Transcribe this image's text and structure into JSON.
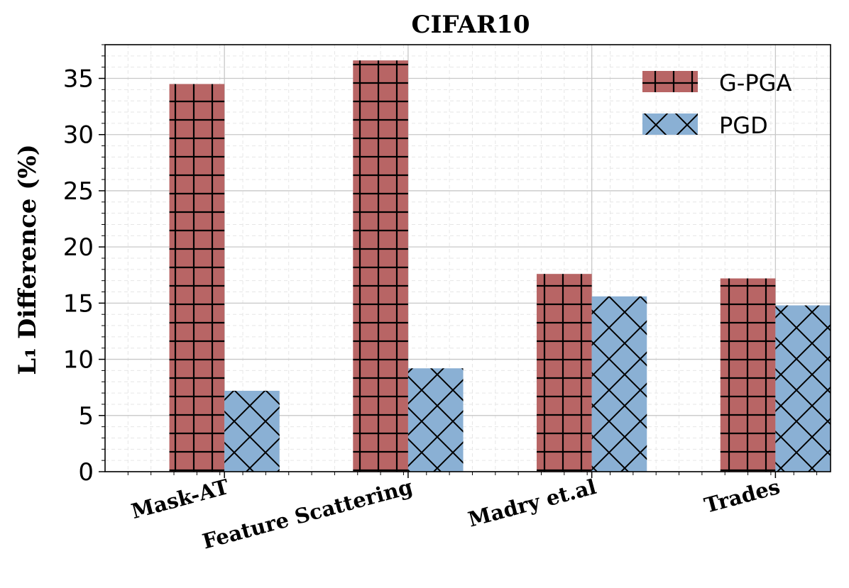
{
  "chart_data": {
    "type": "bar",
    "title": "CIFAR10",
    "ylabel": "L₁ Difference (%)",
    "xlabel": "",
    "categories": [
      "Mask-AT",
      "Feature Scattering",
      "Madry et.al",
      "Trades"
    ],
    "series": [
      {
        "name": "G-PGA",
        "values": [
          34.5,
          36.6,
          17.6,
          17.2
        ],
        "color": "#b86565",
        "hatch": "grid"
      },
      {
        "name": "PGD",
        "values": [
          7.2,
          9.2,
          15.6,
          14.8
        ],
        "color": "#8ab0d4",
        "hatch": "cross"
      }
    ],
    "ylim": [
      0,
      38
    ],
    "yticks": [
      "0",
      "5",
      "10",
      "15",
      "20",
      "25",
      "30",
      "35"
    ],
    "grid": true,
    "legend_position": "top-right"
  }
}
